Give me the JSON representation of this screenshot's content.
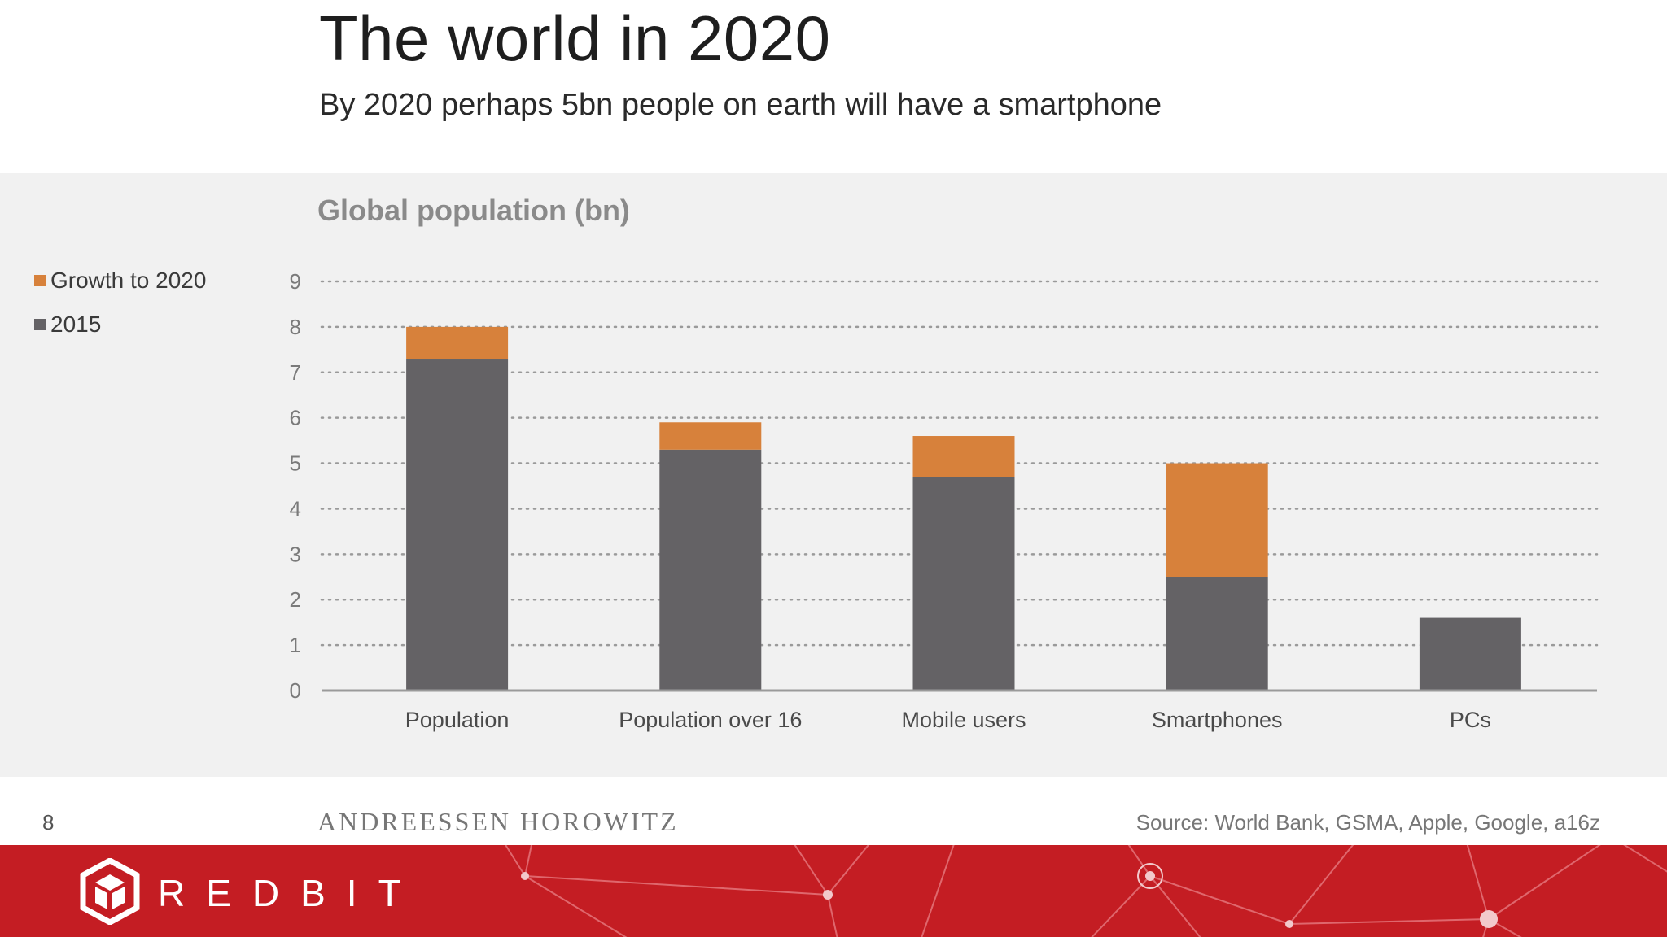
{
  "slide": {
    "title": "The world in 2020",
    "subtitle": "By 2020 perhaps 5bn people on earth will have a smartphone",
    "page_number": "8",
    "brand": "ANDREESSEN HOROWITZ",
    "source": "Source: World Bank, GSMA, Apple, Google, a16z"
  },
  "banner": {
    "brand": "REDBIT",
    "icon": "redbit-cube-logo-icon",
    "color": "#c41d23"
  },
  "legend": {
    "items": [
      {
        "label": "Growth to 2020",
        "color": "#d7813b"
      },
      {
        "label": "2015",
        "color": "#646265"
      }
    ]
  },
  "chart_data": {
    "type": "bar",
    "stacked": true,
    "title": "Global population (bn)",
    "categories": [
      "Population",
      "Population over 16",
      "Mobile users",
      "Smartphones",
      "PCs"
    ],
    "series": [
      {
        "name": "2015",
        "color": "#646265",
        "values": [
          7.3,
          5.3,
          4.7,
          2.5,
          1.6
        ]
      },
      {
        "name": "Growth to 2020",
        "color": "#d7813b",
        "values": [
          0.7,
          0.6,
          0.9,
          2.5,
          0
        ]
      }
    ],
    "ylim": [
      0,
      9
    ],
    "yticks": [
      0,
      1,
      2,
      3,
      4,
      5,
      6,
      7,
      8,
      9
    ],
    "grid": "dotted horizontal",
    "legend_position": "left"
  }
}
